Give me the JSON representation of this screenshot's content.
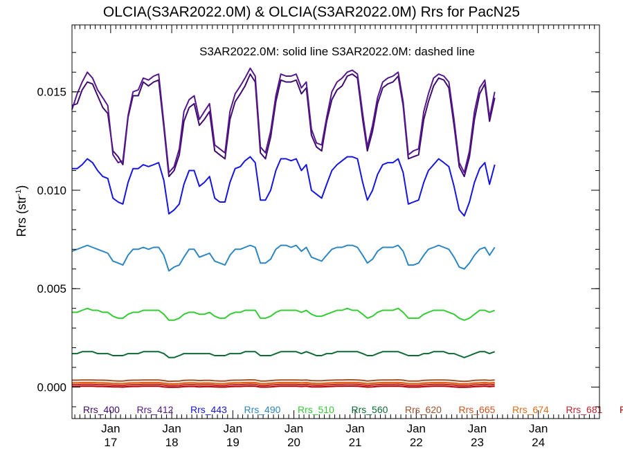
{
  "chart_data": {
    "type": "line",
    "title": "OLCIA(S3AR2022.0M) & OLCIA(S3AR2022.0M)  Rrs for PacN25",
    "note": "S3AR2022.0M: solid line   S3AR2022.0M: dashed line",
    "ylabel": {
      "main": "Rrs (str",
      "sup": "-1",
      "tail": ")"
    },
    "ylim": [
      -0.0016,
      0.0184
    ],
    "xlim": [
      "2016-05-15",
      "2024-12-31"
    ],
    "yticks": [
      "0.000",
      "0.005",
      "0.010",
      "0.015"
    ],
    "ytick_values": [
      0.0,
      0.005,
      0.01,
      0.015
    ],
    "xticks": [
      {
        "month": "Jan",
        "year": "17",
        "date": "2017-01-01"
      },
      {
        "month": "Jan",
        "year": "18",
        "date": "2018-01-01"
      },
      {
        "month": "Jan",
        "year": "19",
        "date": "2019-01-01"
      },
      {
        "month": "Jan",
        "year": "20",
        "date": "2020-01-01"
      },
      {
        "month": "Jan",
        "year": "21",
        "date": "2021-01-01"
      },
      {
        "month": "Jan",
        "year": "22",
        "date": "2022-01-01"
      },
      {
        "month": "Jan",
        "year": "23",
        "date": "2023-01-01"
      },
      {
        "month": "Jan",
        "year": "24",
        "date": "2024-01-01"
      }
    ],
    "grid": false,
    "legend_position": "bottom inside",
    "series": [
      {
        "name": "Rrs_400",
        "color": "#3f0a6e",
        "values": [
          0.0143,
          0.0144,
          0.0151,
          0.0155,
          0.0154,
          0.0148,
          0.0142,
          0.0139,
          0.012,
          0.0117,
          0.0113,
          0.0137,
          0.0148,
          0.0148,
          0.0155,
          0.0153,
          0.0155,
          0.0156,
          0.0132,
          0.0107,
          0.011,
          0.0118,
          0.0135,
          0.0142,
          0.0144,
          0.0133,
          0.0136,
          0.014,
          0.012,
          0.0118,
          0.0116,
          0.0136,
          0.0145,
          0.0149,
          0.0153,
          0.0159,
          0.0155,
          0.0119,
          0.0116,
          0.0127,
          0.0145,
          0.0156,
          0.0155,
          0.0155,
          0.0156,
          0.0149,
          0.0152,
          0.0128,
          0.0122,
          0.012,
          0.0135,
          0.0146,
          0.0151,
          0.0153,
          0.0158,
          0.0159,
          0.0157,
          0.0136,
          0.012,
          0.013,
          0.0144,
          0.0152,
          0.0154,
          0.0155,
          0.0158,
          0.0143,
          0.0116,
          0.0117,
          0.0118,
          0.0136,
          0.0145,
          0.0153,
          0.0157,
          0.0156,
          0.0152,
          0.0133,
          0.0112,
          0.0107,
          0.0117,
          0.0136,
          0.0149,
          0.0154,
          0.0135,
          0.0147
        ]
      },
      {
        "name": "Rrs_412",
        "color": "#55178c",
        "values": [
          0.0141,
          0.0149,
          0.0155,
          0.016,
          0.0157,
          0.0151,
          0.0147,
          0.0143,
          0.0118,
          0.0114,
          0.0115,
          0.0138,
          0.015,
          0.0151,
          0.0157,
          0.0156,
          0.0158,
          0.0159,
          0.0134,
          0.0109,
          0.0112,
          0.0121,
          0.014,
          0.0146,
          0.0148,
          0.0136,
          0.014,
          0.0144,
          0.0123,
          0.0121,
          0.0119,
          0.014,
          0.0149,
          0.0153,
          0.0157,
          0.0162,
          0.0158,
          0.0122,
          0.0119,
          0.013,
          0.0148,
          0.0159,
          0.0158,
          0.0158,
          0.0159,
          0.0152,
          0.0155,
          0.0131,
          0.0124,
          0.0123,
          0.0137,
          0.015,
          0.0155,
          0.0157,
          0.016,
          0.0161,
          0.0159,
          0.0139,
          0.0122,
          0.0133,
          0.0147,
          0.0155,
          0.0157,
          0.0158,
          0.016,
          0.0145,
          0.0118,
          0.012,
          0.0121,
          0.014,
          0.0149,
          0.0157,
          0.0159,
          0.0158,
          0.0155,
          0.0136,
          0.0114,
          0.0109,
          0.012,
          0.014,
          0.0152,
          0.0156,
          0.0137,
          0.015
        ]
      },
      {
        "name": "Rrs_443",
        "color": "#1515e0",
        "values": [
          0.0111,
          0.0111,
          0.0113,
          0.0116,
          0.0114,
          0.011,
          0.0107,
          0.0106,
          0.0096,
          0.0094,
          0.0093,
          0.0104,
          0.0111,
          0.0111,
          0.0113,
          0.0112,
          0.0113,
          0.0114,
          0.0105,
          0.0088,
          0.009,
          0.0093,
          0.0103,
          0.011,
          0.011,
          0.0102,
          0.0104,
          0.0107,
          0.0096,
          0.0094,
          0.0094,
          0.0104,
          0.0111,
          0.0112,
          0.0115,
          0.0117,
          0.0114,
          0.0095,
          0.0095,
          0.01,
          0.011,
          0.0116,
          0.0116,
          0.0115,
          0.0116,
          0.011,
          0.0113,
          0.01,
          0.0098,
          0.0096,
          0.0103,
          0.011,
          0.0113,
          0.0115,
          0.0117,
          0.0117,
          0.0116,
          0.0104,
          0.0095,
          0.01,
          0.0108,
          0.0113,
          0.0114,
          0.0114,
          0.0116,
          0.0109,
          0.0093,
          0.0094,
          0.0095,
          0.0104,
          0.011,
          0.0113,
          0.0116,
          0.0114,
          0.0112,
          0.0102,
          0.009,
          0.0087,
          0.0094,
          0.0104,
          0.0111,
          0.0114,
          0.0103,
          0.0113
        ]
      },
      {
        "name": "Rrs_490",
        "color": "#2e86c1",
        "values": [
          0.0069,
          0.007,
          0.0071,
          0.0072,
          0.0071,
          0.007,
          0.0069,
          0.0068,
          0.0064,
          0.0063,
          0.0062,
          0.0067,
          0.007,
          0.007,
          0.0071,
          0.007,
          0.0071,
          0.0071,
          0.0067,
          0.0059,
          0.0061,
          0.0062,
          0.0066,
          0.007,
          0.007,
          0.0066,
          0.0067,
          0.0068,
          0.0064,
          0.0063,
          0.0062,
          0.0067,
          0.007,
          0.007,
          0.0071,
          0.0072,
          0.0071,
          0.0063,
          0.0063,
          0.0065,
          0.007,
          0.0072,
          0.0072,
          0.0071,
          0.0072,
          0.0069,
          0.0071,
          0.0066,
          0.0065,
          0.0064,
          0.0067,
          0.007,
          0.0071,
          0.0071,
          0.0072,
          0.0072,
          0.0071,
          0.0067,
          0.0063,
          0.0065,
          0.0069,
          0.0071,
          0.0071,
          0.0071,
          0.0072,
          0.0069,
          0.0062,
          0.0062,
          0.0063,
          0.0067,
          0.007,
          0.0071,
          0.0072,
          0.0071,
          0.007,
          0.0066,
          0.0061,
          0.006,
          0.0063,
          0.0067,
          0.007,
          0.0071,
          0.0067,
          0.0071
        ]
      },
      {
        "name": "Rrs_510",
        "color": "#33cc33",
        "values": [
          0.0038,
          0.0038,
          0.0039,
          0.004,
          0.0039,
          0.0039,
          0.0038,
          0.0038,
          0.0036,
          0.0035,
          0.0035,
          0.0037,
          0.0038,
          0.0038,
          0.0039,
          0.0039,
          0.0039,
          0.0039,
          0.0037,
          0.0034,
          0.0034,
          0.0035,
          0.0037,
          0.0038,
          0.0038,
          0.0037,
          0.0037,
          0.0038,
          0.0036,
          0.0035,
          0.0035,
          0.0037,
          0.0038,
          0.0038,
          0.0039,
          0.0039,
          0.0039,
          0.0035,
          0.0035,
          0.0036,
          0.0038,
          0.0039,
          0.0039,
          0.0039,
          0.0039,
          0.0038,
          0.0039,
          0.0037,
          0.0036,
          0.0036,
          0.0037,
          0.0038,
          0.0039,
          0.0039,
          0.004,
          0.0039,
          0.0039,
          0.0037,
          0.0035,
          0.0036,
          0.0038,
          0.0039,
          0.0039,
          0.0039,
          0.004,
          0.0038,
          0.0035,
          0.0035,
          0.0035,
          0.0037,
          0.0038,
          0.0039,
          0.0039,
          0.0039,
          0.0038,
          0.0037,
          0.0035,
          0.0034,
          0.0035,
          0.0037,
          0.0039,
          0.0039,
          0.0038,
          0.0039
        ]
      },
      {
        "name": "Rrs_560",
        "color": "#0b6b32",
        "values": [
          0.0017,
          0.0017,
          0.0018,
          0.0018,
          0.0018,
          0.0017,
          0.0017,
          0.0017,
          0.0016,
          0.0016,
          0.0016,
          0.0017,
          0.0017,
          0.0017,
          0.0018,
          0.0018,
          0.0018,
          0.0018,
          0.0017,
          0.0015,
          0.0015,
          0.0016,
          0.0017,
          0.0017,
          0.0017,
          0.0017,
          0.0017,
          0.0017,
          0.0016,
          0.0016,
          0.0016,
          0.0017,
          0.0017,
          0.0017,
          0.0018,
          0.0018,
          0.0018,
          0.0016,
          0.0016,
          0.0016,
          0.0017,
          0.0018,
          0.0018,
          0.0018,
          0.0018,
          0.0017,
          0.0018,
          0.0017,
          0.0016,
          0.0016,
          0.0017,
          0.0017,
          0.0018,
          0.0018,
          0.0018,
          0.0018,
          0.0018,
          0.0017,
          0.0016,
          0.0016,
          0.0017,
          0.0018,
          0.0018,
          0.0018,
          0.0018,
          0.0017,
          0.0016,
          0.0016,
          0.0016,
          0.0017,
          0.0017,
          0.0018,
          0.0018,
          0.0018,
          0.0017,
          0.0017,
          0.0016,
          0.0015,
          0.0016,
          0.0017,
          0.0018,
          0.0018,
          0.0017,
          0.0018
        ]
      },
      {
        "name": "Rrs_620",
        "color": "#a0522d",
        "values": [
          0.00035,
          0.00035,
          0.00036,
          0.00036,
          0.00036,
          0.00035,
          0.00035,
          0.00034,
          0.00032,
          0.00031,
          0.00031,
          0.00034,
          0.00035,
          0.00035,
          0.00036,
          0.00036,
          0.00036,
          0.00036,
          0.00033,
          0.00029,
          0.0003,
          0.00031,
          0.00034,
          0.00035,
          0.00035,
          0.00033,
          0.00034,
          0.00034,
          0.00032,
          0.00031,
          0.00031,
          0.00034,
          0.00035,
          0.00035,
          0.00036,
          0.00037,
          0.00036,
          0.00031,
          0.00031,
          0.00033,
          0.00035,
          0.00036,
          0.00036,
          0.00036,
          0.00036,
          0.00035,
          0.00036,
          0.00033,
          0.00032,
          0.00032,
          0.00034,
          0.00035,
          0.00036,
          0.00036,
          0.00037,
          0.00037,
          0.00036,
          0.00034,
          0.00031,
          0.00033,
          0.00035,
          0.00036,
          0.00036,
          0.00036,
          0.00037,
          0.00035,
          0.00031,
          0.00031,
          0.00031,
          0.00034,
          0.00035,
          0.00036,
          0.00036,
          0.00036,
          0.00035,
          0.00033,
          0.0003,
          0.00029,
          0.00031,
          0.00034,
          0.00035,
          0.00036,
          0.00034,
          0.00036
        ]
      },
      {
        "name": "Rrs_665",
        "color": "#d2521e",
        "values": [
          0.00022,
          0.00022,
          0.00023,
          0.00023,
          0.00023,
          0.00022,
          0.00022,
          0.00021,
          0.00019,
          0.00019,
          0.00018,
          0.00021,
          0.00022,
          0.00022,
          0.00023,
          0.00023,
          0.00023,
          0.00023,
          0.0002,
          0.00017,
          0.00017,
          0.00018,
          0.00021,
          0.00022,
          0.00022,
          0.0002,
          0.00021,
          0.00021,
          0.00019,
          0.00018,
          0.00018,
          0.00021,
          0.00022,
          0.00022,
          0.00023,
          0.00024,
          0.00023,
          0.00018,
          0.00018,
          0.0002,
          0.00022,
          0.00023,
          0.00023,
          0.00023,
          0.00023,
          0.00022,
          0.00023,
          0.0002,
          0.00019,
          0.00019,
          0.00021,
          0.00022,
          0.00023,
          0.00023,
          0.00024,
          0.00024,
          0.00023,
          0.00021,
          0.00018,
          0.0002,
          0.00022,
          0.00023,
          0.00023,
          0.00023,
          0.00024,
          0.00022,
          0.00018,
          0.00018,
          0.00018,
          0.00021,
          0.00022,
          0.00023,
          0.00023,
          0.00023,
          0.00022,
          0.0002,
          0.00017,
          0.00017,
          0.00018,
          0.00021,
          0.00022,
          0.00023,
          0.00021,
          0.00023
        ]
      },
      {
        "name": "Rrs_674",
        "color": "#e06c1a",
        "values": [
          0.0002,
          0.0002,
          0.00021,
          0.00021,
          0.00021,
          0.0002,
          0.0002,
          0.00019,
          0.00017,
          0.00017,
          0.00016,
          0.00019,
          0.0002,
          0.0002,
          0.00021,
          0.00021,
          0.00021,
          0.00021,
          0.00018,
          0.00015,
          0.00015,
          0.00016,
          0.00019,
          0.0002,
          0.0002,
          0.00018,
          0.00019,
          0.00019,
          0.00017,
          0.00016,
          0.00016,
          0.00019,
          0.0002,
          0.0002,
          0.00021,
          0.00022,
          0.00021,
          0.00016,
          0.00016,
          0.00018,
          0.0002,
          0.00021,
          0.00021,
          0.00021,
          0.00021,
          0.0002,
          0.00021,
          0.00018,
          0.00017,
          0.00017,
          0.00019,
          0.0002,
          0.00021,
          0.00021,
          0.00022,
          0.00022,
          0.00021,
          0.00019,
          0.00016,
          0.00018,
          0.0002,
          0.00021,
          0.00021,
          0.00021,
          0.00022,
          0.0002,
          0.00016,
          0.00016,
          0.00016,
          0.00019,
          0.0002,
          0.00021,
          0.00021,
          0.00021,
          0.0002,
          0.00018,
          0.00015,
          0.00015,
          0.00016,
          0.00019,
          0.0002,
          0.00021,
          0.00019,
          0.00021
        ]
      },
      {
        "name": "Rrs_681",
        "color": "#c0262f",
        "values": [
          0.00012,
          0.00012,
          0.00013,
          0.00013,
          0.00013,
          0.00012,
          0.00012,
          0.00011,
          9e-05,
          9e-05,
          8e-05,
          0.00011,
          0.00012,
          0.00012,
          0.00013,
          0.00013,
          0.00013,
          0.00013,
          0.0001,
          7e-05,
          7e-05,
          8e-05,
          0.00011,
          0.00012,
          0.00012,
          0.0001,
          0.00011,
          0.00011,
          9e-05,
          8e-05,
          8e-05,
          0.00011,
          0.00012,
          0.00012,
          0.00013,
          0.00014,
          0.00013,
          8e-05,
          8e-05,
          0.0001,
          0.00012,
          0.00013,
          0.00013,
          0.00013,
          0.00013,
          0.00012,
          0.00013,
          0.0001,
          9e-05,
          9e-05,
          0.00011,
          0.00012,
          0.00013,
          0.00013,
          0.00014,
          0.00014,
          0.00013,
          0.00011,
          8e-05,
          0.0001,
          0.00012,
          0.00013,
          0.00013,
          0.00013,
          0.00014,
          0.00012,
          8e-05,
          8e-05,
          8e-05,
          0.00011,
          0.00012,
          0.00013,
          0.00013,
          0.00013,
          0.00012,
          0.0001,
          7e-05,
          7e-05,
          8e-05,
          0.00011,
          0.00012,
          0.00013,
          0.00011,
          0.00013
        ]
      },
      {
        "name": "Rr",
        "color": "#b30000",
        "values": [
          3e-05,
          3e-05,
          4e-05,
          4e-05,
          4e-05,
          3e-05,
          3e-05,
          2e-05,
          1e-05,
          1e-05,
          0.0,
          2e-05,
          3e-05,
          3e-05,
          4e-05,
          4e-05,
          4e-05,
          4e-05,
          1e-05,
          -1e-05,
          -1e-05,
          0.0,
          2e-05,
          3e-05,
          3e-05,
          1e-05,
          2e-05,
          2e-05,
          1e-05,
          0.0,
          0.0,
          2e-05,
          3e-05,
          3e-05,
          4e-05,
          5e-05,
          4e-05,
          0.0,
          0.0,
          1e-05,
          3e-05,
          4e-05,
          4e-05,
          4e-05,
          4e-05,
          3e-05,
          4e-05,
          1e-05,
          1e-05,
          1e-05,
          2e-05,
          3e-05,
          4e-05,
          4e-05,
          5e-05,
          5e-05,
          4e-05,
          2e-05,
          0.0,
          1e-05,
          3e-05,
          4e-05,
          4e-05,
          4e-05,
          5e-05,
          3e-05,
          0.0,
          0.0,
          0.0,
          2e-05,
          3e-05,
          4e-05,
          4e-05,
          4e-05,
          3e-05,
          1e-05,
          -1e-05,
          -1e-05,
          0.0,
          2e-05,
          3e-05,
          4e-05,
          2e-05,
          4e-05
        ]
      }
    ]
  }
}
